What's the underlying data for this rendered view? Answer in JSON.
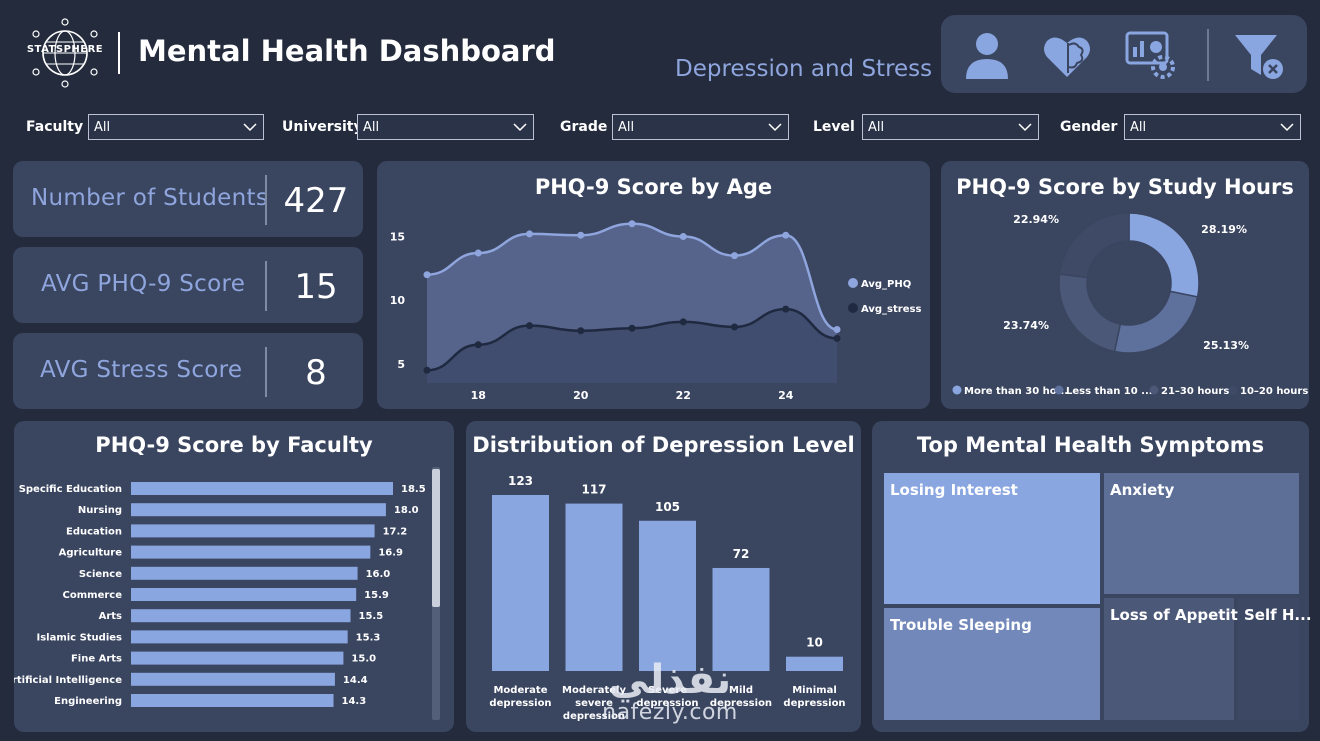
{
  "header": {
    "logo_text": "STATSPHERE",
    "title": "Mental Health Dashboard",
    "subtitle": "Depression and Stress",
    "nav_icons": [
      "user-icon",
      "brain-heart-icon",
      "analytics-gear-icon",
      "filter-clear-icon"
    ]
  },
  "filters": [
    {
      "label": "Faculty",
      "value": "All"
    },
    {
      "label": "University",
      "value": "All"
    },
    {
      "label": "Grade",
      "value": "All"
    },
    {
      "label": "Level",
      "value": "All"
    },
    {
      "label": "Gender",
      "value": "All"
    }
  ],
  "kpis": [
    {
      "label": "Number of Students",
      "value": "427"
    },
    {
      "label": "AVG PHQ-9 Score",
      "value": "15"
    },
    {
      "label": "AVG Stress Score",
      "value": "8"
    }
  ],
  "colors": {
    "background": "#232b3d",
    "card": "#3a4560",
    "accent": "#8fa5dd",
    "bar": "#8aa6e0",
    "dark_series": "#1f2940"
  },
  "chart_data": [
    {
      "type": "area",
      "title": "PHQ-9 Score by Age",
      "x": [
        17,
        18,
        19,
        20,
        21,
        22,
        23,
        24,
        25
      ],
      "series": [
        {
          "name": "Avg_PHQ",
          "values": [
            12.0,
            13.7,
            15.2,
            15.1,
            16.0,
            15.0,
            13.5,
            15.1,
            7.7
          ]
        },
        {
          "name": "Avg_stress",
          "values": [
            4.5,
            6.5,
            8.0,
            7.6,
            7.8,
            8.3,
            7.9,
            9.3,
            7.0
          ]
        }
      ],
      "xticks": [
        "18",
        "20",
        "22",
        "24"
      ],
      "yticks": [
        "5",
        "10",
        "15"
      ],
      "ylim": [
        3.5,
        17
      ],
      "legend": "right"
    },
    {
      "type": "pie",
      "title": "PHQ-9 Score by Study Hours",
      "donut": true,
      "slices": [
        {
          "name": "More than 30 ho...",
          "value": 28.19,
          "label": "28.19%",
          "color": "#8aa6e0"
        },
        {
          "name": "Less than 10 ...",
          "value": 25.13,
          "label": "25.13%",
          "color": "#5e719c"
        },
        {
          "name": "21–30 hours",
          "value": 23.74,
          "label": "23.74%",
          "color": "#4b5878"
        },
        {
          "name": "10–20 hours",
          "value": 22.94,
          "label": "22.94%",
          "color": "#3f4a66"
        }
      ],
      "legend": "bottom"
    },
    {
      "type": "bar",
      "orientation": "horizontal",
      "title": "PHQ-9 Score by Faculty",
      "categories": [
        "Specific Education",
        "Nursing",
        "Education",
        "Agriculture",
        "Science",
        "Commerce",
        "Arts",
        "Islamic Studies",
        "Fine Arts",
        "Artificial Intelligence",
        "Engineering"
      ],
      "values": [
        18.5,
        18.0,
        17.2,
        16.9,
        16.0,
        15.9,
        15.5,
        15.3,
        15.0,
        14.4,
        14.3
      ],
      "labels": [
        "18.5",
        "18.0",
        "17.2",
        "16.9",
        "16.0",
        "15.9",
        "15.5",
        "15.3",
        "15.0",
        "14.4",
        "14.3"
      ],
      "xlim": [
        0,
        18.5
      ]
    },
    {
      "type": "bar",
      "title": "Distribution of Depression Level",
      "categories": [
        "Moderate depression",
        "Moderately severe depression",
        "Severe depression",
        "Mild depression",
        "Minimal depression"
      ],
      "category_lines": [
        [
          "Moderate",
          "depression"
        ],
        [
          "Moderately",
          "severe",
          "depression"
        ],
        [
          "Severe",
          "depression"
        ],
        [
          "Mild",
          "depression"
        ],
        [
          "Minimal",
          "depression"
        ]
      ],
      "values": [
        123,
        117,
        105,
        72,
        10
      ],
      "ylim": [
        0,
        123
      ]
    },
    {
      "type": "treemap",
      "title": "Top Mental Health Symptoms",
      "items": [
        {
          "name": "Losing Interest",
          "color": "#8aa6e0"
        },
        {
          "name": "Anxiety",
          "color": "#5e6f97"
        },
        {
          "name": "Trouble Sleeping",
          "color": "#7288ba"
        },
        {
          "name": "Loss of Appetite",
          "color": "#4b5878"
        },
        {
          "name": "Self H...",
          "color": "#3d4865"
        }
      ]
    }
  ],
  "watermark": {
    "arabic": "نفذلي",
    "latin": "nafezly.com"
  }
}
